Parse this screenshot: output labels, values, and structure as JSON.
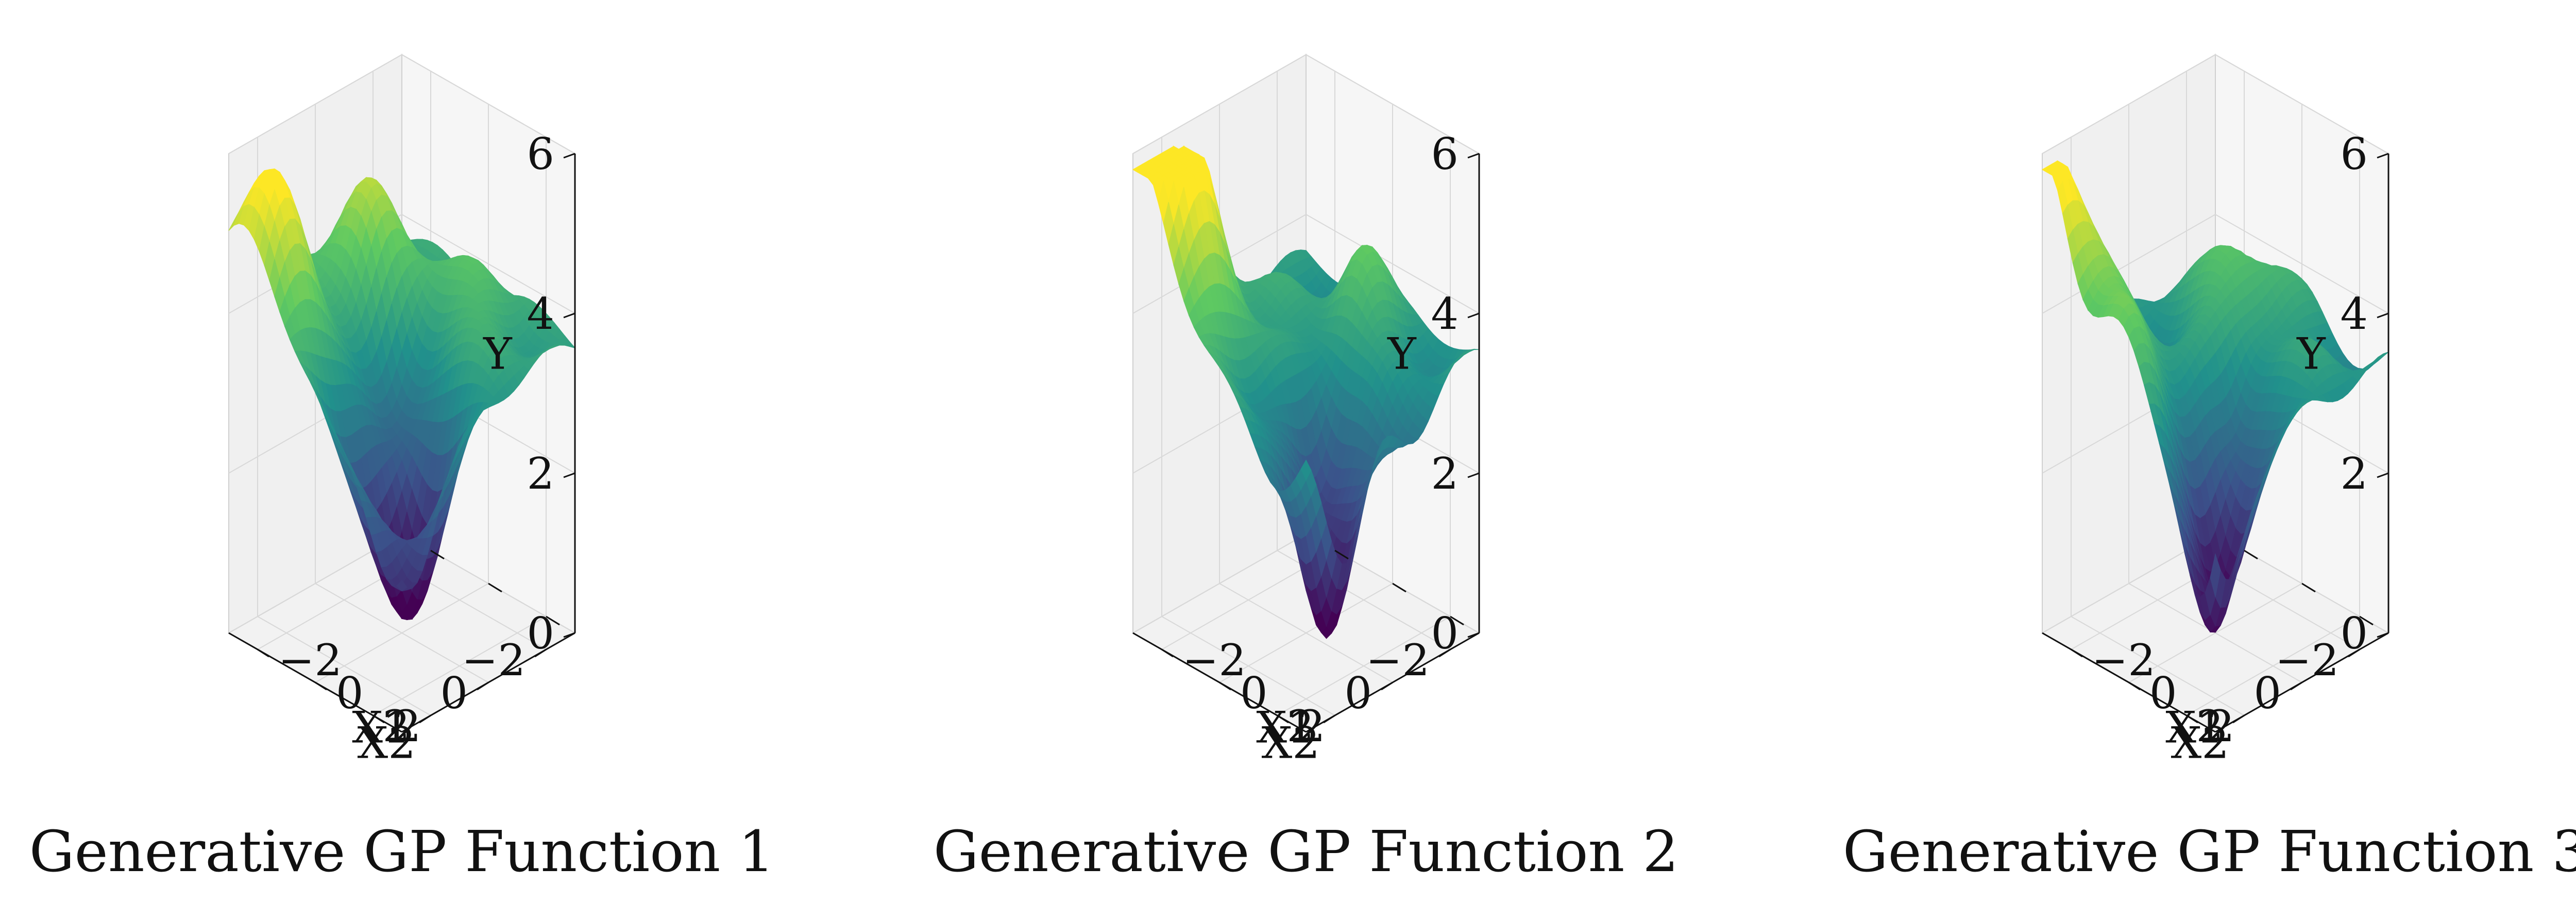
{
  "figure": {
    "colormap": [
      "#440154",
      "#3b528b",
      "#21918c",
      "#5ec962",
      "#fde725"
    ]
  },
  "chart_data": [
    {
      "type": "surface",
      "title": "Generative GP Function 1",
      "xlabel": "X1",
      "ylabel": "X2",
      "zlabel": "Y",
      "xlim": [
        -3,
        3
      ],
      "ylim": [
        -3,
        3
      ],
      "zlim": [
        0,
        6
      ],
      "x_ticks": [
        -2,
        0,
        2
      ],
      "y_ticks": [
        -2,
        0,
        2
      ],
      "z_ticks": [
        0,
        2,
        4,
        6
      ],
      "x_tick_labels": [
        "−2",
        "0",
        "2"
      ],
      "y_tick_labels": [
        "−2",
        "0",
        "2"
      ],
      "z_tick_labels": [
        "0",
        "2",
        "4",
        "6"
      ],
      "base": 3.6,
      "bumps": [
        {
          "x": 2.4,
          "y": -2.4,
          "a": 2.0,
          "s": 1.0
        },
        {
          "x": -1.0,
          "y": -2.0,
          "a": 1.2,
          "s": 1.0
        },
        {
          "x": 1.2,
          "y": 1.2,
          "a": -2.8,
          "s": 0.9
        },
        {
          "x": 2.8,
          "y": 2.8,
          "a": -1.8,
          "s": 0.8
        },
        {
          "x": -1.8,
          "y": 1.0,
          "a": 0.6,
          "s": 0.8
        },
        {
          "x": 0.2,
          "y": -0.4,
          "a": -0.9,
          "s": 0.6
        }
      ]
    },
    {
      "type": "surface",
      "title": "Generative GP Function 2",
      "xlabel": "X1",
      "ylabel": "X2",
      "zlabel": "Y",
      "xlim": [
        -3,
        3
      ],
      "ylim": [
        -3,
        3
      ],
      "zlim": [
        0,
        6
      ],
      "x_ticks": [
        -2,
        0,
        2
      ],
      "y_ticks": [
        -2,
        0,
        2
      ],
      "z_ticks": [
        0,
        2,
        4,
        6
      ],
      "x_tick_labels": [
        "−2",
        "0",
        "2"
      ],
      "y_tick_labels": [
        "−2",
        "0",
        "2"
      ],
      "z_tick_labels": [
        "0",
        "2",
        "4",
        "6"
      ],
      "base": 3.5,
      "bumps": [
        {
          "x": 2.6,
          "y": -2.6,
          "a": 2.6,
          "s": 1.1
        },
        {
          "x": 1.2,
          "y": -2.6,
          "a": 1.0,
          "s": 0.9
        },
        {
          "x": 1.6,
          "y": 2.2,
          "a": -3.0,
          "s": 0.7
        },
        {
          "x": 0.4,
          "y": 0.8,
          "a": -1.4,
          "s": 0.6
        },
        {
          "x": -1.6,
          "y": 0.2,
          "a": 1.0,
          "s": 0.6
        },
        {
          "x": -0.6,
          "y": 2.4,
          "a": -0.8,
          "s": 0.7
        }
      ]
    },
    {
      "type": "surface",
      "title": "Generative GP Function 3",
      "xlabel": "X1",
      "ylabel": "X2",
      "zlabel": "Y",
      "xlim": [
        -3,
        3
      ],
      "ylim": [
        -3,
        3
      ],
      "zlim": [
        0,
        6
      ],
      "x_ticks": [
        -2,
        0,
        2
      ],
      "y_ticks": [
        -2,
        0,
        2
      ],
      "z_ticks": [
        0,
        2,
        4,
        6
      ],
      "x_tick_labels": [
        "−2",
        "0",
        "2"
      ],
      "y_tick_labels": [
        "−2",
        "0",
        "2"
      ],
      "z_tick_labels": [
        "0",
        "2",
        "4",
        "6"
      ],
      "base": 3.4,
      "bumps": [
        {
          "x": 2.8,
          "y": -2.8,
          "a": 2.6,
          "s": 0.9
        },
        {
          "x": 2.4,
          "y": -0.6,
          "a": 1.0,
          "s": 0.8
        },
        {
          "x": 1.4,
          "y": 1.6,
          "a": -2.6,
          "s": 0.7
        },
        {
          "x": 2.6,
          "y": 2.6,
          "a": -2.0,
          "s": 0.6
        },
        {
          "x": -1.4,
          "y": -0.6,
          "a": 1.0,
          "s": 0.8
        },
        {
          "x": 0.0,
          "y": 0.6,
          "a": -0.8,
          "s": 0.5
        }
      ]
    }
  ]
}
